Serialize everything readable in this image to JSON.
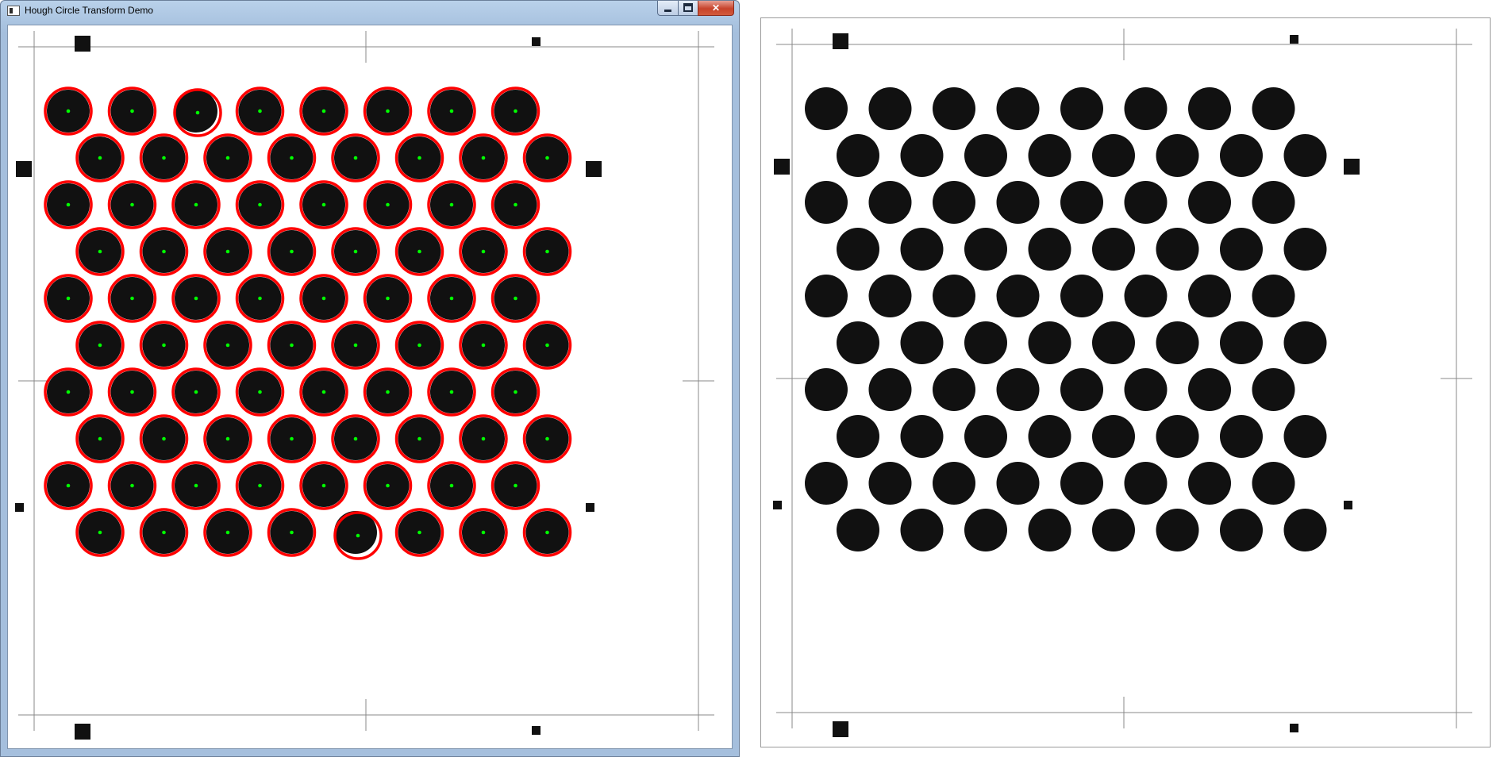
{
  "window": {
    "title": "Hough Circle Transform Demo",
    "controls": {
      "minimize": "minimize",
      "maximize": "maximize",
      "close": "✕"
    }
  },
  "colors": {
    "dot_fill": "#111111",
    "detected_circle": "#ff0000",
    "detected_center": "#00ff00",
    "page_frame": "#888888",
    "registration_mark": "#111111"
  },
  "grid": {
    "rows": 10,
    "dots_per_row": 8,
    "layout": "hexagonal staggered"
  },
  "left_view": {
    "description_role": "processed-image",
    "detected_circles_per_row": [
      8,
      8,
      8,
      8,
      8,
      8,
      8,
      8,
      8,
      8
    ]
  },
  "right_view": {
    "description_role": "source-image"
  }
}
